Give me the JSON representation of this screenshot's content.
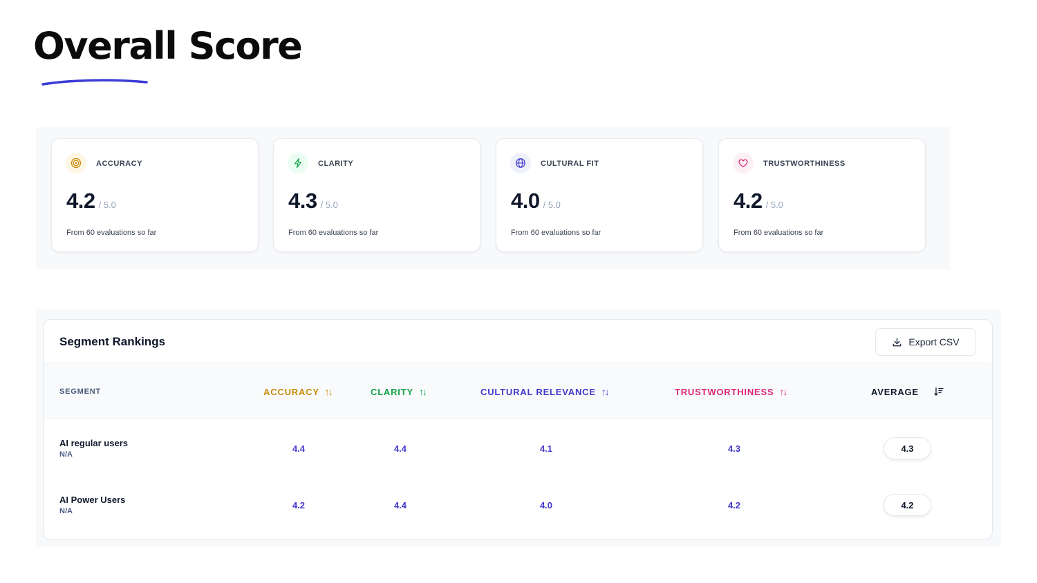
{
  "page": {
    "title": "Overall Score"
  },
  "colors": {
    "accent": "#3b3bd6",
    "accuracy": "#c98a0b",
    "clarity": "#16a34a",
    "cultural": "#4338ca",
    "trust": "#db2777",
    "value_text": "#4338ca"
  },
  "metrics": [
    {
      "icon": "target-icon",
      "label": "ACCURACY",
      "value": "4.2",
      "max": "/ 5.0",
      "note": "From 60 evaluations so far"
    },
    {
      "icon": "lightning-icon",
      "label": "CLARITY",
      "value": "4.3",
      "max": "/ 5.0",
      "note": "From 60 evaluations so far"
    },
    {
      "icon": "globe-icon",
      "label": "CULTURAL FIT",
      "value": "4.0",
      "max": "/ 5.0",
      "note": "From 60 evaluations so far"
    },
    {
      "icon": "heart-icon",
      "label": "TRUSTWORTHINESS",
      "value": "4.2",
      "max": "/ 5.0",
      "note": "From 60 evaluations so far"
    }
  ],
  "rankings": {
    "title": "Segment Rankings",
    "export_label": "Export CSV",
    "columns": [
      "SEGMENT",
      "ACCURACY",
      "CLARITY",
      "CULTURAL RELEVANCE",
      "TRUSTWORTHINESS",
      "AVERAGE"
    ],
    "rows": [
      {
        "segment": "AI regular users",
        "sub": "N/A",
        "accuracy": "4.4",
        "clarity": "4.4",
        "cultural": "4.1",
        "trust": "4.3",
        "average": "4.3"
      },
      {
        "segment": "AI Power Users",
        "sub": "N/A",
        "accuracy": "4.2",
        "clarity": "4.4",
        "cultural": "4.0",
        "trust": "4.2",
        "average": "4.2"
      }
    ]
  }
}
